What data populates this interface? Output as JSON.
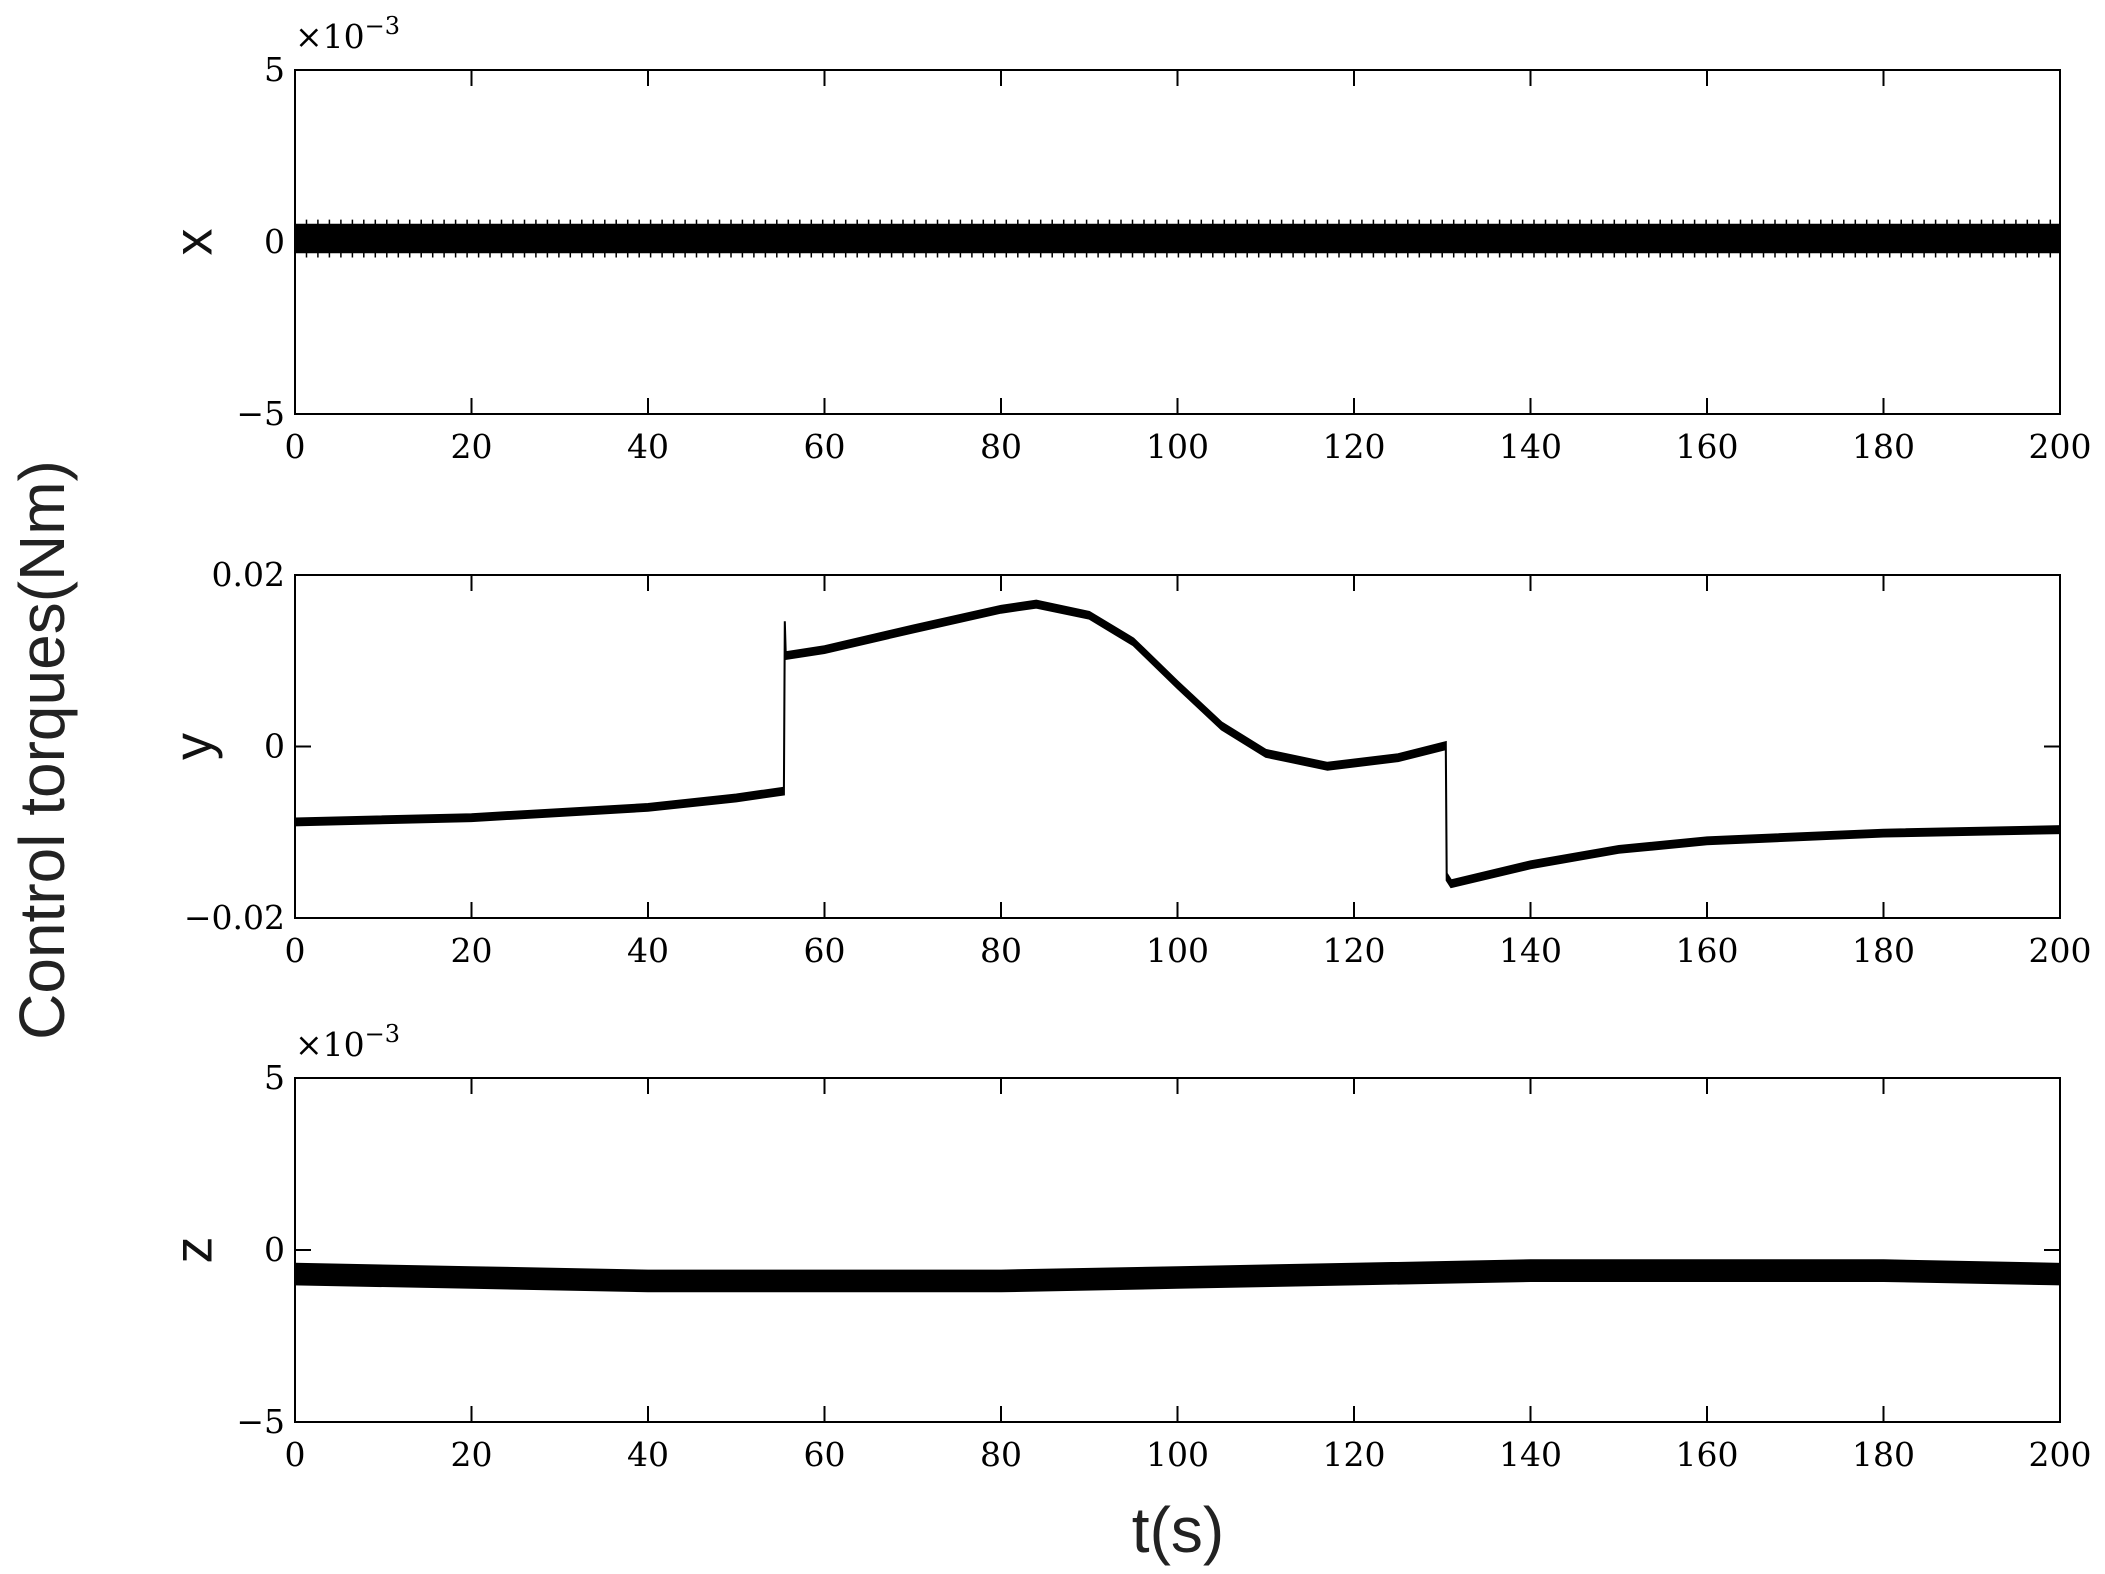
{
  "figure": {
    "ylabel": "Control torques(Nm)",
    "xlabel": "t(s)"
  },
  "chart_data": [
    {
      "type": "line",
      "panel": "x",
      "ylabel": "x",
      "multiplier_label": "×10",
      "multiplier_exponent": "−3",
      "xlim": [
        0,
        200
      ],
      "ylim": [
        -0.005,
        0.005
      ],
      "xticks": [
        "0",
        "20",
        "40",
        "60",
        "80",
        "100",
        "120",
        "140",
        "160",
        "180",
        "200"
      ],
      "yticks": [
        "5",
        "0",
        "−5"
      ],
      "yticks_values": [
        0.005,
        0,
        -0.005
      ],
      "color": "#000000",
      "band_halfwidth": 0.0004,
      "x": [
        0,
        200
      ],
      "y": [
        0.0001,
        0.0001
      ]
    },
    {
      "type": "line",
      "panel": "y",
      "ylabel": "y",
      "multiplier_label": "",
      "multiplier_exponent": "",
      "xlim": [
        0,
        200
      ],
      "ylim": [
        -0.02,
        0.02
      ],
      "xticks": [
        "0",
        "20",
        "40",
        "60",
        "80",
        "100",
        "120",
        "140",
        "160",
        "180",
        "200"
      ],
      "yticks": [
        "0.02",
        "0",
        "−0.02"
      ],
      "yticks_values": [
        0.02,
        0,
        -0.02
      ],
      "color": "#000000",
      "band_halfwidth": 0.0004,
      "x": [
        0,
        20,
        40,
        50,
        55.4,
        55.5,
        55.6,
        60,
        70,
        80,
        84,
        90,
        95,
        100,
        105,
        110,
        117,
        125,
        130.4,
        130.5,
        131,
        140,
        150,
        160,
        180,
        200
      ],
      "y": [
        -0.0088,
        -0.0083,
        -0.0071,
        -0.006,
        -0.0052,
        0.0142,
        0.0106,
        0.0113,
        0.0137,
        0.016,
        0.0166,
        0.0153,
        0.0122,
        0.0072,
        0.0024,
        -0.0008,
        -0.0023,
        -0.0013,
        0.0001,
        -0.0152,
        -0.016,
        -0.0138,
        -0.012,
        -0.011,
        -0.0101,
        -0.0097
      ]
    },
    {
      "type": "line",
      "panel": "z",
      "ylabel": "z",
      "multiplier_label": "×10",
      "multiplier_exponent": "−3",
      "xlim": [
        0,
        200
      ],
      "ylim": [
        -0.005,
        0.005
      ],
      "xticks": [
        "0",
        "20",
        "40",
        "60",
        "80",
        "100",
        "120",
        "140",
        "160",
        "180",
        "200"
      ],
      "yticks": [
        "5",
        "0",
        "−5"
      ],
      "yticks_values": [
        0.005,
        0,
        -0.005
      ],
      "color": "#000000",
      "band_halfwidth": 0.0003,
      "x": [
        0,
        20,
        40,
        60,
        80,
        100,
        120,
        140,
        160,
        180,
        200
      ],
      "y": [
        -0.0007,
        -0.0008,
        -0.0009,
        -0.0009,
        -0.0009,
        -0.0008,
        -0.0007,
        -0.0006,
        -0.0006,
        -0.0006,
        -0.0007
      ]
    }
  ]
}
